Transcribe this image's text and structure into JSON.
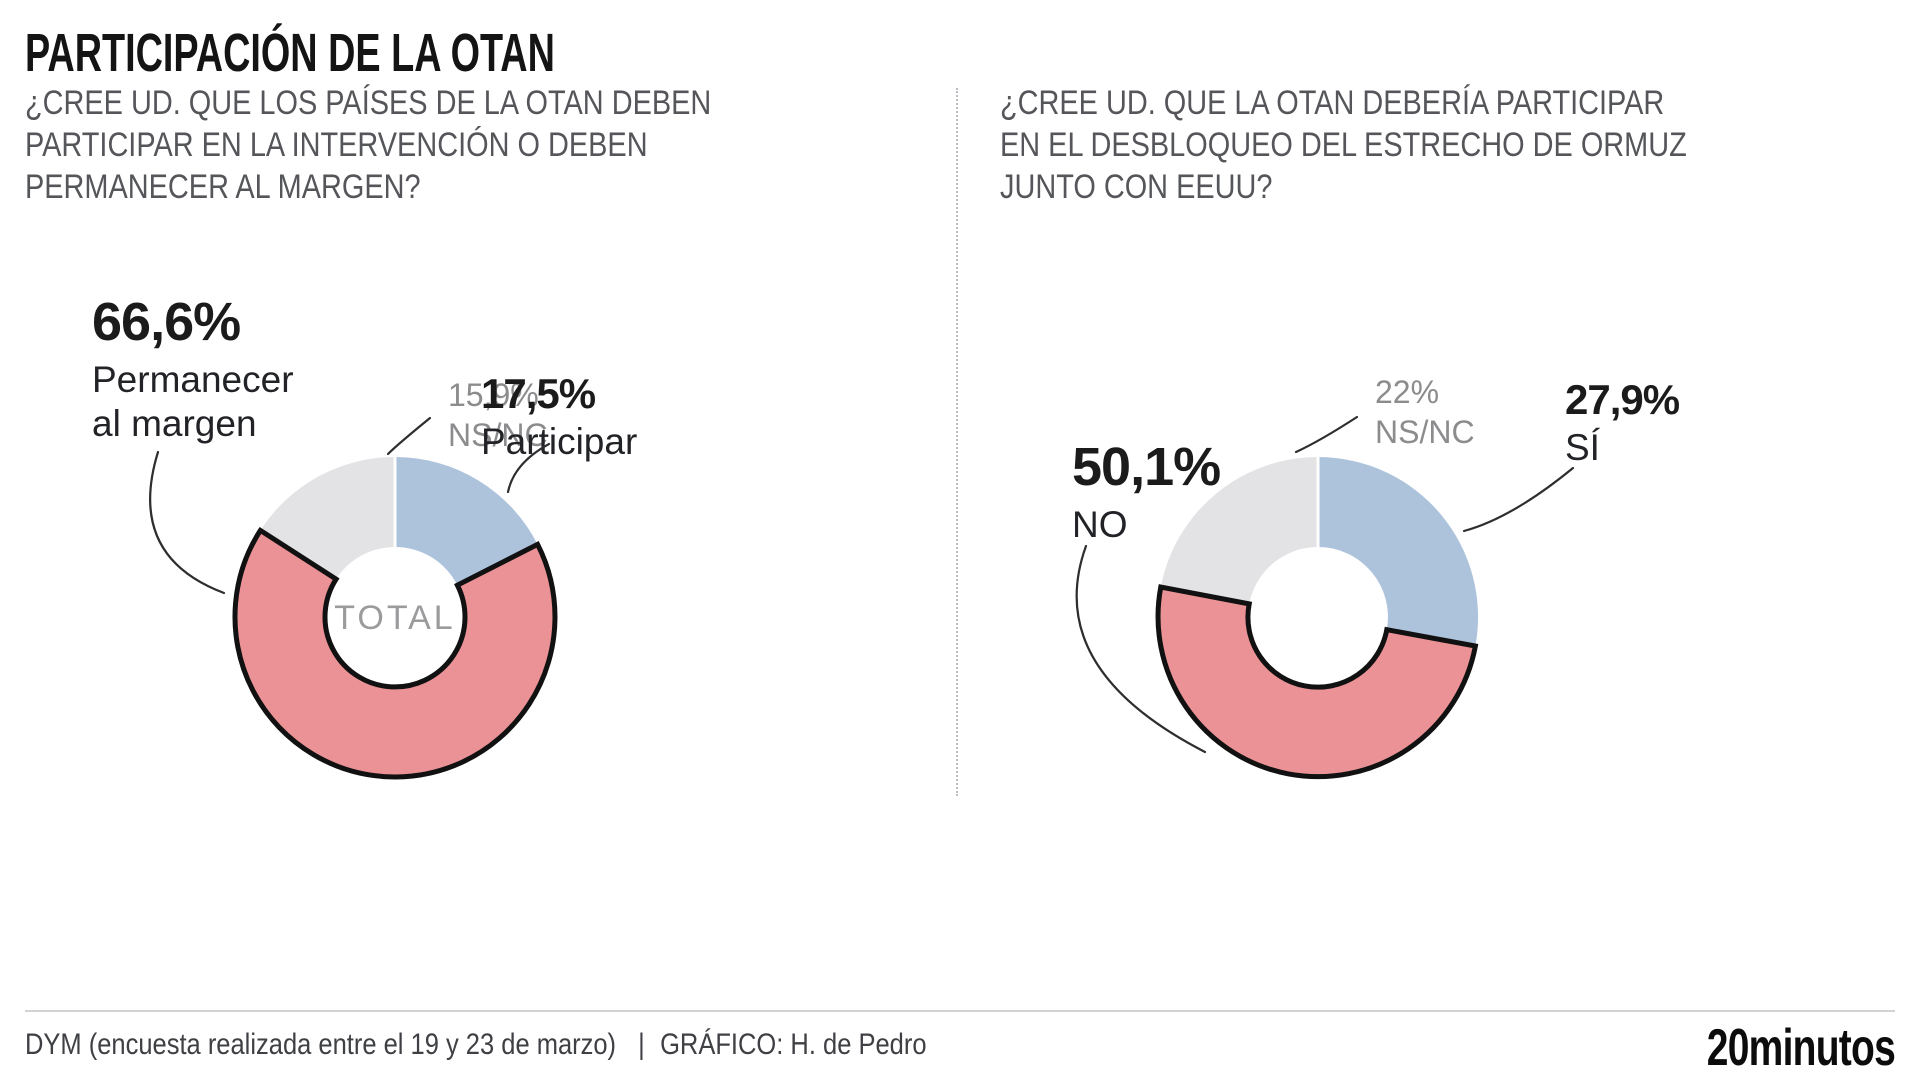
{
  "header": {
    "title": "PARTICIPACIÓN DE LA OTAN"
  },
  "panels": [
    {
      "question_lines": [
        "¿CREE UD. QUE LOS PAÍSES DE LA OTAN DEBEN",
        "PARTICIPAR EN LA INTERVENCIÓN O DEBEN",
        "PERMANECER AL MARGEN?"
      ],
      "labels": {
        "main": {
          "value": "66,6%",
          "line1": "Permanecer",
          "line2": "al margen"
        },
        "secondary": {
          "value": "17,5%",
          "name": "Participar"
        },
        "nsnc": {
          "value": "15,9%",
          "name": "NS/NC"
        }
      },
      "center_label": "TOTAL"
    },
    {
      "question_lines": [
        "¿CREE UD. QUE LA OTAN DEBERÍA PARTICIPAR",
        "EN EL DESBLOQUEO DEL ESTRECHO DE ORMUZ",
        "JUNTO CON EEUU?"
      ],
      "labels": {
        "main": {
          "value": "50,1%",
          "line1": "NO",
          "line2": ""
        },
        "secondary": {
          "value": "27,9%",
          "name": "SÍ"
        },
        "nsnc": {
          "value": "22%",
          "name": "NS/NC"
        }
      },
      "center_label": ""
    }
  ],
  "chart_data": [
    {
      "type": "donut",
      "question": "¿Cree Ud. que los países de la OTAN deben participar en la intervención o deben permanecer al margen?",
      "start_angle_deg": 0,
      "direction": "clockwise",
      "center_label": "TOTAL",
      "slices": [
        {
          "label": "Participar",
          "value": 17.5,
          "color": "#adc3dc",
          "outlined": false
        },
        {
          "label": "Permanecer al margen",
          "value": 66.6,
          "color": "#eb9296",
          "outlined": true
        },
        {
          "label": "NS/NC",
          "value": 15.9,
          "color": "#e3e3e5",
          "outlined": false
        }
      ]
    },
    {
      "type": "donut",
      "question": "¿Cree Ud. que la OTAN debería participar en el desbloqueo del Estrecho de Ormuz junto con EEUU?",
      "start_angle_deg": 0,
      "direction": "clockwise",
      "center_label": "",
      "slices": [
        {
          "label": "SÍ",
          "value": 27.9,
          "color": "#adc3dc",
          "outlined": false
        },
        {
          "label": "NO",
          "value": 50.1,
          "color": "#eb9296",
          "outlined": true
        },
        {
          "label": "NS/NC",
          "value": 22.0,
          "color": "#e3e3e5",
          "outlined": false
        }
      ]
    }
  ],
  "footer": {
    "source": "DYM (encuesta realizada entre el  19 y 23 de marzo)",
    "separator": "|",
    "credit": "GRÁFICO: H. de Pedro",
    "logo": "20minutos"
  },
  "colors": {
    "yes_blue": "#adc3dc",
    "no_red": "#eb9296",
    "nsnc_gray": "#e3e3e5",
    "outline_black": "#111111"
  }
}
